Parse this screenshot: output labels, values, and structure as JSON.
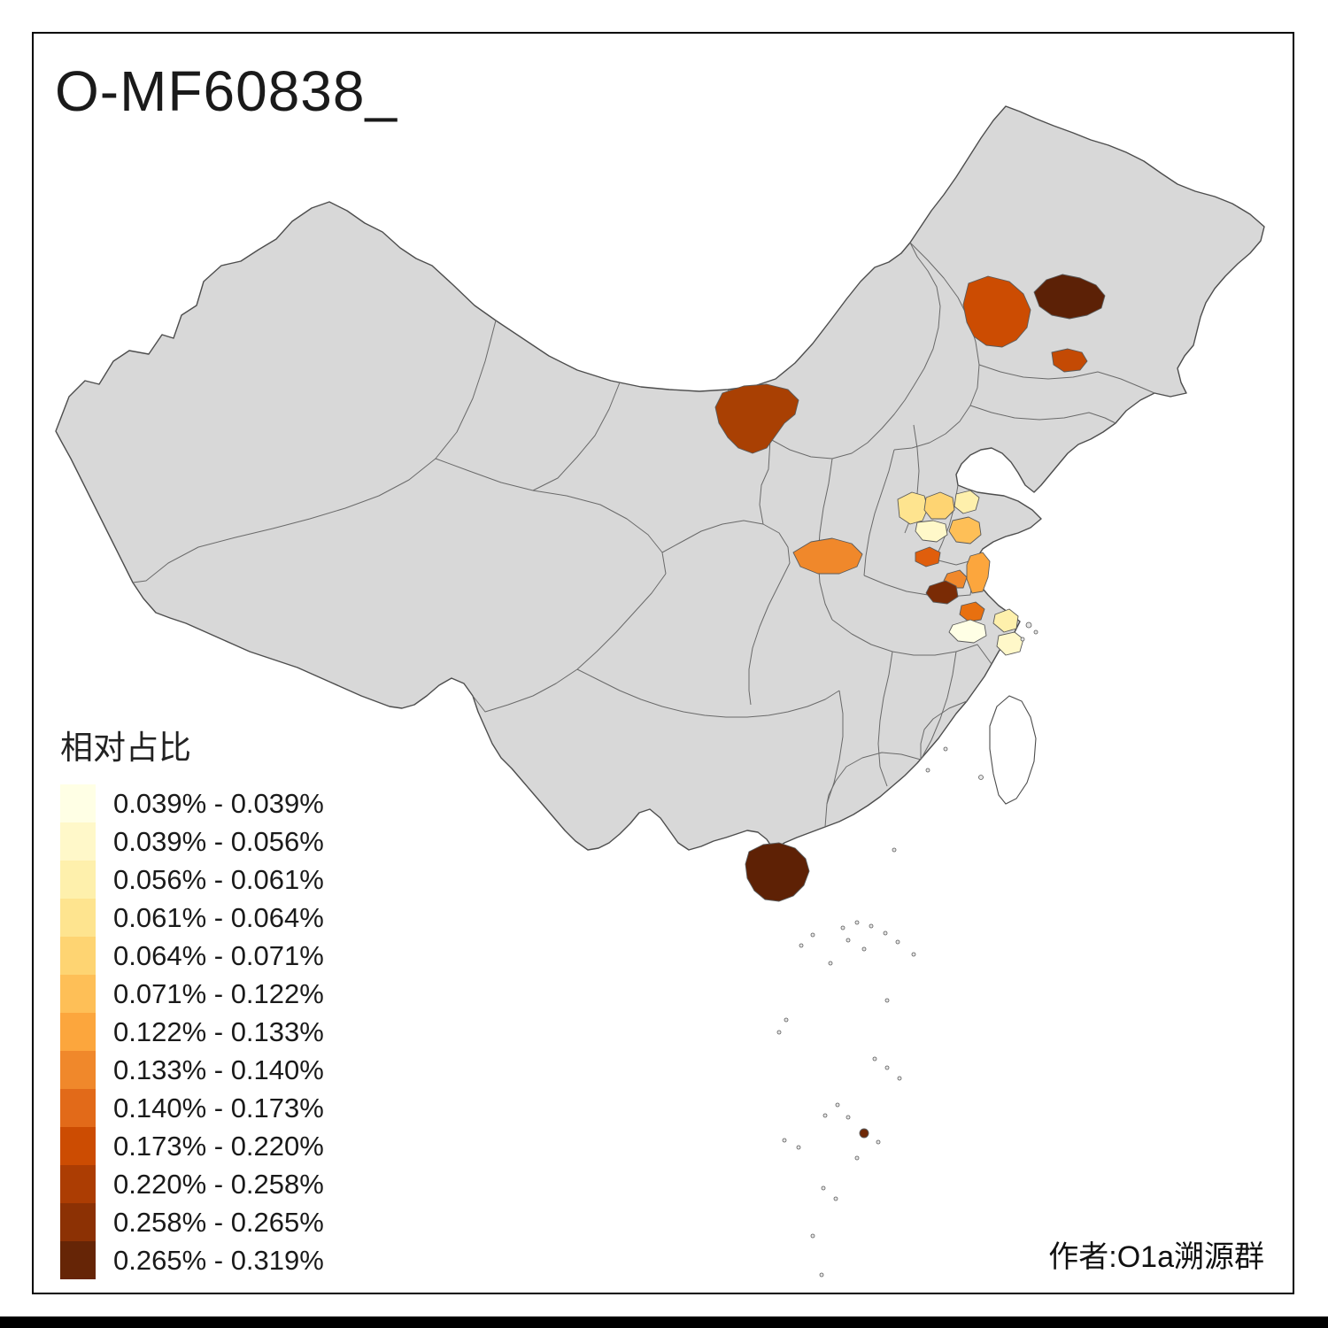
{
  "title": "O-MF60838_",
  "attribution": "作者:O1a溯源群",
  "legend": {
    "title": "相对占比",
    "classes": [
      {
        "label": "0.039% - 0.039%",
        "color": "#FFFFE5"
      },
      {
        "label": "0.039% - 0.056%",
        "color": "#FFF8C9"
      },
      {
        "label": "0.056% - 0.061%",
        "color": "#FEF0AC"
      },
      {
        "label": "0.061% - 0.064%",
        "color": "#FEE48F"
      },
      {
        "label": "0.064% - 0.071%",
        "color": "#FED472"
      },
      {
        "label": "0.071% - 0.122%",
        "color": "#FEBF57"
      },
      {
        "label": "0.122% - 0.133%",
        "color": "#FCA63D"
      },
      {
        "label": "0.133% - 0.140%",
        "color": "#F0882B"
      },
      {
        "label": "0.140% - 0.173%",
        "color": "#E26A19"
      },
      {
        "label": "0.173% - 0.220%",
        "color": "#CC4C02"
      },
      {
        "label": "0.220% - 0.258%",
        "color": "#AC3D03"
      },
      {
        "label": "0.258% - 0.265%",
        "color": "#8C3104"
      },
      {
        "label": "0.265% - 0.319%",
        "color": "#662506"
      }
    ]
  },
  "map": {
    "base_fill": "#D8D8D8",
    "boundary_color": "#4D4D4D",
    "background": "#FFFFFF",
    "regions": [
      {
        "id": "region-northeast-dark",
        "class": "0.265% - 0.319%",
        "color": "#5C2106"
      },
      {
        "id": "region-northeast-orange",
        "class": "0.173% - 0.220%",
        "color": "#CC4C02"
      },
      {
        "id": "region-northeast-small",
        "class": "0.173% - 0.220%",
        "color": "#C44A04"
      },
      {
        "id": "region-innermongolia-west",
        "class": "0.220% - 0.258%",
        "color": "#A94003"
      },
      {
        "id": "region-central-pale-1",
        "class": "0.061% - 0.064%",
        "color": "#FEE48F"
      },
      {
        "id": "region-central-yellow",
        "class": "0.064% - 0.071%",
        "color": "#FED472"
      },
      {
        "id": "region-central-pale-2",
        "class": "0.056% - 0.061%",
        "color": "#FEF0AC"
      },
      {
        "id": "region-central-cream",
        "class": "0.039% - 0.056%",
        "color": "#FFF8C9"
      },
      {
        "id": "region-central-amber",
        "class": "0.071% - 0.122%",
        "color": "#FEBF57"
      },
      {
        "id": "region-shaanxi-south",
        "class": "0.133% - 0.140%",
        "color": "#F0882B"
      },
      {
        "id": "region-central-redorange",
        "class": "0.140% - 0.173%",
        "color": "#E05E0C"
      },
      {
        "id": "region-east-orange-tall",
        "class": "0.122% - 0.133%",
        "color": "#FCA63D"
      },
      {
        "id": "region-east-orange-small",
        "class": "0.133% - 0.140%",
        "color": "#F0882B"
      },
      {
        "id": "region-east-maroon",
        "class": "0.258% - 0.265%",
        "color": "#7A2B05"
      },
      {
        "id": "region-east-orange-2",
        "class": "0.140% - 0.173%",
        "color": "#E8700F"
      },
      {
        "id": "region-east-cream",
        "class": "0.039% - 0.039%",
        "color": "#FFFFE5"
      },
      {
        "id": "region-coast-paleyellow",
        "class": "0.056% - 0.061%",
        "color": "#FEF0AC"
      },
      {
        "id": "region-coast-cream",
        "class": "0.039% - 0.056%",
        "color": "#FFF8C9"
      },
      {
        "id": "region-hainan",
        "class": "0.265% - 0.319%",
        "color": "#5E2105"
      },
      {
        "id": "region-southsea-islet",
        "class": "0.258% - 0.265%",
        "color": "#6E2807"
      }
    ]
  },
  "chart_data": {
    "type": "choropleth",
    "title": "O-MF60838_",
    "legend_title": "相对占比",
    "value_unit": "%",
    "class_breaks": [
      0.039,
      0.039,
      0.056,
      0.061,
      0.064,
      0.071,
      0.122,
      0.133,
      0.14,
      0.173,
      0.22,
      0.258,
      0.265,
      0.319
    ],
    "palette": [
      "#FFFFE5",
      "#FFF8C9",
      "#FEF0AC",
      "#FEE48F",
      "#FED472",
      "#FEBF57",
      "#FCA63D",
      "#F0882B",
      "#E26A19",
      "#CC4C02",
      "#AC3D03",
      "#8C3104",
      "#662506"
    ],
    "base_region_fill": "#D8D8D8",
    "legend_position": "bottom-left",
    "annotations": [
      "作者:O1a溯源群"
    ]
  }
}
